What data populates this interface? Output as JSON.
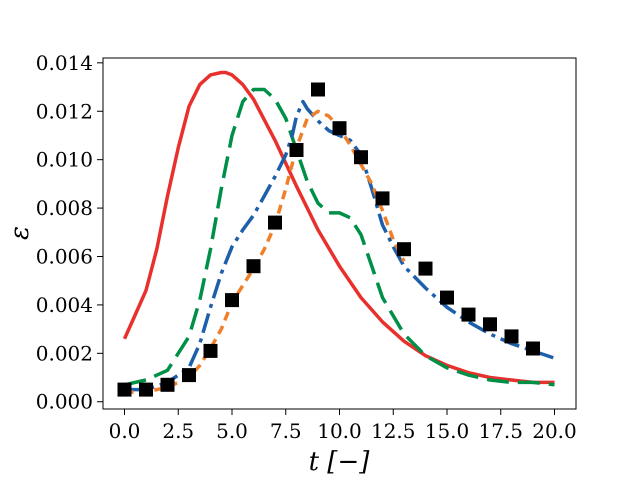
{
  "chart_data": {
    "type": "line",
    "title": "",
    "xlabel": "t [−]",
    "ylabel": "ε",
    "xlim": [
      -1,
      21
    ],
    "ylim": [
      -0.0003,
      0.0142
    ],
    "xticks": [
      0.0,
      2.5,
      5.0,
      7.5,
      10.0,
      12.5,
      15.0,
      17.5,
      20.0
    ],
    "xtick_labels": [
      "0.0",
      "2.5",
      "5.0",
      "7.5",
      "10.0",
      "12.5",
      "15.0",
      "17.5",
      "20.0"
    ],
    "yticks": [
      0.0,
      0.002,
      0.004,
      0.006,
      0.008,
      0.01,
      0.012,
      0.014
    ],
    "ytick_labels": [
      "0.000",
      "0.002",
      "0.004",
      "0.006",
      "0.008",
      "0.010",
      "0.012",
      "0.014"
    ],
    "grid": false,
    "legend": "none",
    "series": [
      {
        "kind": "line",
        "color": "#e8302c",
        "dash": "solid",
        "x": [
          0.0,
          0.5,
          1.0,
          1.5,
          2.0,
          2.5,
          3.0,
          3.5,
          4.0,
          4.5,
          4.7,
          5.0,
          5.5,
          6.0,
          7.0,
          8.0,
          9.0,
          10.0,
          11.0,
          12.0,
          13.0,
          14.0,
          15.0,
          16.0,
          17.0,
          18.0,
          19.0,
          20.0
        ],
        "y": [
          0.0026,
          0.0036,
          0.0046,
          0.0063,
          0.0085,
          0.0105,
          0.0122,
          0.0131,
          0.0135,
          0.0136,
          0.0136,
          0.0135,
          0.0131,
          0.0125,
          0.0108,
          0.0089,
          0.0071,
          0.0056,
          0.0043,
          0.0033,
          0.0025,
          0.0019,
          0.0015,
          0.0012,
          0.001,
          0.0009,
          0.0008,
          0.0008
        ]
      },
      {
        "kind": "line",
        "color": "#008f47",
        "dash": "long",
        "x": [
          0.0,
          1.0,
          2.0,
          3.0,
          3.5,
          4.0,
          4.5,
          5.0,
          5.5,
          6.0,
          6.5,
          7.0,
          7.5,
          8.0,
          8.5,
          9.0,
          9.5,
          10.0,
          10.5,
          11.0,
          11.5,
          12.0,
          13.0,
          14.0,
          15.0,
          16.0,
          17.0,
          18.0,
          19.0,
          20.0
        ],
        "y": [
          0.0007,
          0.0009,
          0.0013,
          0.0027,
          0.0042,
          0.0063,
          0.0088,
          0.011,
          0.0124,
          0.0129,
          0.0129,
          0.0125,
          0.0117,
          0.0104,
          0.0091,
          0.0082,
          0.0078,
          0.0078,
          0.0076,
          0.0069,
          0.0056,
          0.0043,
          0.0028,
          0.0019,
          0.0014,
          0.0011,
          0.0009,
          0.0008,
          0.0008,
          0.0007
        ]
      },
      {
        "kind": "line",
        "color": "#1e5fab",
        "dash": "dashdot",
        "x": [
          0.0,
          1.0,
          2.0,
          3.0,
          3.5,
          4.0,
          4.5,
          5.0,
          5.5,
          6.0,
          6.5,
          7.0,
          7.5,
          7.8,
          8.0,
          8.3,
          8.5,
          9.0,
          9.5,
          10.0,
          10.5,
          11.0,
          11.5,
          12.0,
          12.5,
          13.0,
          14.0,
          15.0,
          16.0,
          17.0,
          18.0,
          19.0,
          20.0
        ],
        "y": [
          0.0005,
          0.0005,
          0.0008,
          0.0014,
          0.0024,
          0.0039,
          0.0053,
          0.0064,
          0.0071,
          0.0077,
          0.0085,
          0.0093,
          0.0102,
          0.011,
          0.0118,
          0.0124,
          0.0121,
          0.0116,
          0.0112,
          0.011,
          0.0108,
          0.0102,
          0.0088,
          0.0073,
          0.0064,
          0.0056,
          0.0047,
          0.0039,
          0.0033,
          0.0028,
          0.0024,
          0.0021,
          0.0018
        ]
      },
      {
        "kind": "line",
        "color": "#f07f2b",
        "dash": "short",
        "x": [
          0.0,
          1.0,
          2.0,
          3.0,
          3.5,
          4.0,
          4.5,
          5.0,
          5.5,
          6.0,
          6.5,
          7.0,
          7.5,
          8.0,
          8.5,
          9.0,
          9.5,
          10.0,
          10.5,
          11.0,
          11.5,
          12.0,
          12.5,
          13.0
        ],
        "y": [
          0.0004,
          0.0004,
          0.0006,
          0.001,
          0.0015,
          0.0022,
          0.003,
          0.0041,
          0.0048,
          0.0055,
          0.0063,
          0.0073,
          0.0088,
          0.0105,
          0.0117,
          0.012,
          0.0118,
          0.0113,
          0.0106,
          0.0098,
          0.009,
          0.0079,
          0.0067,
          0.0058
        ]
      },
      {
        "kind": "scatter",
        "color": "#000000",
        "marker": "square",
        "x": [
          0,
          1,
          2,
          3,
          4,
          5,
          6,
          7,
          8,
          9,
          10,
          11,
          12,
          13,
          14,
          15,
          16,
          17,
          18,
          19
        ],
        "y": [
          0.0005,
          0.0005,
          0.0007,
          0.0011,
          0.0021,
          0.0042,
          0.0056,
          0.0074,
          0.0104,
          0.0129,
          0.0113,
          0.0101,
          0.0084,
          0.0063,
          0.0055,
          0.0043,
          0.0036,
          0.0032,
          0.0027,
          0.0022
        ]
      }
    ]
  }
}
